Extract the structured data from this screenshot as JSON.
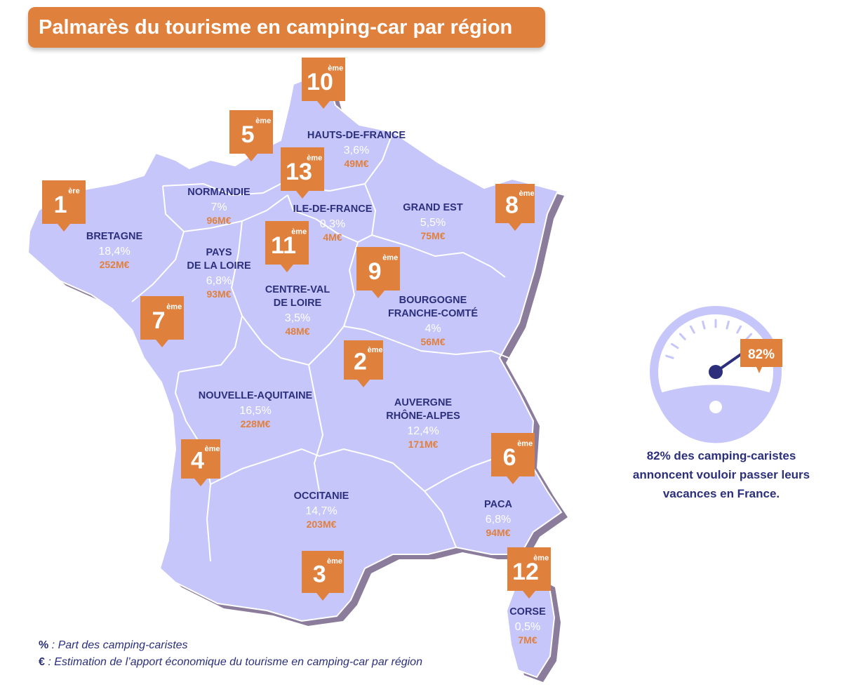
{
  "title": "Palmarès du tourisme en camping-car par région",
  "regions": [
    {
      "name": "HAUTS-DE-FRANCE",
      "pct": "3,6%",
      "eur": "49M€",
      "rank": "10",
      "suffix": "ème"
    },
    {
      "name": "NORMANDIE",
      "pct": "7%",
      "eur": "96M€",
      "rank": "5",
      "suffix": "ème"
    },
    {
      "name": "ILE-DE-FRANCE",
      "pct": "0,3%",
      "eur": "4M€",
      "rank": "13",
      "suffix": "ème"
    },
    {
      "name": "GRAND EST",
      "pct": "5,5%",
      "eur": "75M€",
      "rank": "8",
      "suffix": "ème"
    },
    {
      "name": "BRETAGNE",
      "pct": "18,4%",
      "eur": "252M€",
      "rank": "1",
      "suffix": "ère"
    },
    {
      "name": [
        "PAYS",
        "DE LA LOIRE"
      ],
      "pct": "6,8%",
      "eur": "93M€",
      "rank": "7",
      "suffix": "ème"
    },
    {
      "name": [
        "CENTRE-VAL",
        "DE LOIRE"
      ],
      "pct": "3,5%",
      "eur": "48M€",
      "rank": "11",
      "suffix": "ème"
    },
    {
      "name": [
        "BOURGOGNE",
        "FRANCHE-COMTÉ"
      ],
      "pct": "4%",
      "eur": "56M€",
      "rank": "9",
      "suffix": "ème"
    },
    {
      "name": "NOUVELLE-AQUITAINE",
      "pct": "16,5%",
      "eur": "228M€",
      "rank": "2",
      "suffix": "ème"
    },
    {
      "name": [
        "AUVERGNE",
        "RHÔNE-ALPES"
      ],
      "pct": "12,4%",
      "eur": "171M€",
      "rank": "4",
      "suffix": "ème"
    },
    {
      "name": "OCCITANIE",
      "pct": "14,7%",
      "eur": "203M€",
      "rank": "3",
      "suffix": "ème"
    },
    {
      "name": "PACA",
      "pct": "6,8%",
      "eur": "94M€",
      "rank": "6",
      "suffix": "ème"
    },
    {
      "name": "CORSE",
      "pct": "0,5%",
      "eur": "7M€",
      "rank": "12",
      "suffix": "ème"
    }
  ],
  "gauge": {
    "value": 0.82,
    "label": "82%"
  },
  "stat_lines": [
    "82% des camping-caristes",
    "annoncent vouloir passer leurs",
    "vacances en France."
  ],
  "legend": [
    {
      "symbol": "%",
      "text": " : Part des camping-caristes"
    },
    {
      "symbol": "€",
      "text": " : Estimation de l’apport économique du tourisme en camping-car par région"
    }
  ],
  "colors": {
    "land": "#c6c6fa",
    "shadow": "#8c7c9c",
    "accent": "#e0803d",
    "text": "#2b2f7c",
    "border": "#ffffff"
  }
}
